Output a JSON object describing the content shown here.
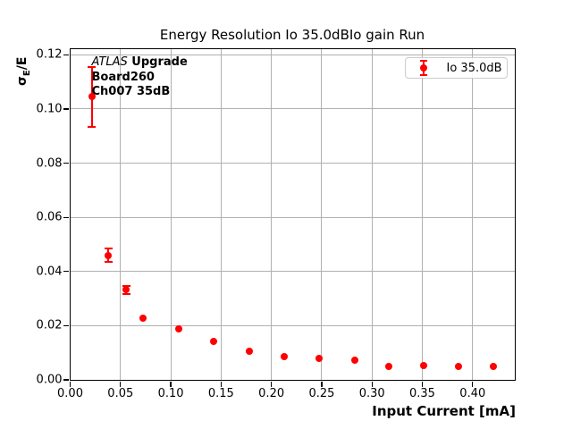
{
  "colors": {
    "series_red": "#ff0000",
    "grid": "#b0b0b0",
    "spine": "#000000",
    "legend_border": "#cccccc",
    "background": "#ffffff"
  },
  "annotation": {
    "experiment": "ATLAS",
    "upgrade": " Upgrade",
    "board": "Board260",
    "channel": "Ch007 35dB"
  },
  "ylabel_parts": {
    "sigma": "σ",
    "sub": "E",
    "rest": "/E"
  },
  "legend": {
    "position": "upper right",
    "entries": [
      "Io 35.0dB"
    ]
  },
  "chart_data": {
    "type": "scatter",
    "title": "Energy Resolution Io 35.0dBIo gain Run",
    "xlabel": "Input Current [mA]",
    "ylabel": "σ_E/E",
    "xlim": [
      0,
      0.4415
    ],
    "ylim": [
      0,
      0.1221
    ],
    "xticks": [
      0.0,
      0.05,
      0.1,
      0.15,
      0.2,
      0.25,
      0.3,
      0.35,
      0.4
    ],
    "yticks": [
      0.0,
      0.02,
      0.04,
      0.06,
      0.08,
      0.1,
      0.12
    ],
    "grid": true,
    "legend_position": "upper right",
    "series": [
      {
        "name": "Io 35.0dB",
        "color": "#ff0000",
        "marker": "o",
        "points": [
          {
            "x": 0.0216,
            "y": 0.1045,
            "yerr": 0.011
          },
          {
            "x": 0.0379,
            "y": 0.0459,
            "yerr": 0.0025
          },
          {
            "x": 0.0557,
            "y": 0.0332,
            "yerr": 0.0016
          },
          {
            "x": 0.0728,
            "y": 0.0228,
            "yerr": 0
          },
          {
            "x": 0.1081,
            "y": 0.0189,
            "yerr": 0
          },
          {
            "x": 0.1424,
            "y": 0.0141,
            "yerr": 0
          },
          {
            "x": 0.1777,
            "y": 0.0105,
            "yerr": 0
          },
          {
            "x": 0.2126,
            "y": 0.0085,
            "yerr": 0
          },
          {
            "x": 0.2476,
            "y": 0.0078,
            "yerr": 0
          },
          {
            "x": 0.2831,
            "y": 0.0072,
            "yerr": 0
          },
          {
            "x": 0.3163,
            "y": 0.0049,
            "yerr": 0
          },
          {
            "x": 0.3515,
            "y": 0.0054,
            "yerr": 0
          },
          {
            "x": 0.3858,
            "y": 0.005,
            "yerr": 0
          },
          {
            "x": 0.4208,
            "y": 0.0048,
            "yerr": 0
          }
        ]
      }
    ]
  }
}
